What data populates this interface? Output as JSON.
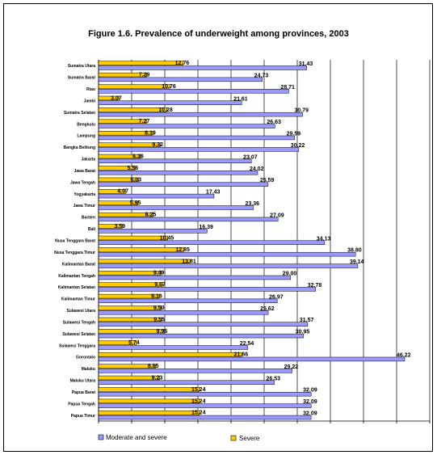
{
  "chart_data": {
    "type": "bar",
    "orientation": "horizontal",
    "title": "Figure 1.6. Prevalence of underweight among provinces, 2003",
    "categories": [
      "Sumatra Utara",
      "Sumatra Barat",
      "Riau",
      "Jambi",
      "Sumatra Selatan",
      "Bengkulu",
      "Lampung",
      "Bangka Belitung",
      "Jakarta",
      "Jawa Barat",
      "Jawa Tengah",
      "Yogyakarta",
      "Jawa Timur",
      "Banten",
      "Bali",
      "Nusa Tenggara Barat",
      "Nusa Tenggara Timur",
      "Kalimantan Barat",
      "Kalimantan Tengah",
      "Kalimantan Selatan",
      "Kalimantan Timur",
      "Sulawesi Utara",
      "Sulawesi Tengah",
      "Sulawesi Selatan",
      "Sulawesi Tenggara",
      "Gorontalo",
      "Maluku",
      "Maluku Utara",
      "Papua Barat",
      "Papua Tengah",
      "Papua Timur"
    ],
    "series": [
      {
        "name": "Moderate and severe",
        "color": "#9999ff",
        "values": [
          31.43,
          24.73,
          28.71,
          21.61,
          30.79,
          26.63,
          29.59,
          30.22,
          23.07,
          24.02,
          25.59,
          17.43,
          23.36,
          27.09,
          16.39,
          34.13,
          38.8,
          39.14,
          29.0,
          32.78,
          26.97,
          25.62,
          31.57,
          30.95,
          22.54,
          46.22,
          29.22,
          26.53,
          32.09,
          32.09,
          32.09
        ],
        "labels": [
          "31.43",
          "24.73",
          "28.71",
          "21.61",
          "30.79",
          "26.63",
          "29.59",
          "30.22",
          "23.07",
          "24.02",
          "25.59",
          "17.43",
          "23.36",
          "27.09",
          "16.39",
          "34.13",
          "38.80",
          "39.14",
          "29.00",
          "32.78",
          "26.97",
          "25.62",
          "31.57",
          "30.95",
          "22.54",
          "46.22",
          "29.22",
          "26.53",
          "32.09",
          "32.09",
          "32.09"
        ]
      },
      {
        "name": "Severe",
        "color": "#ffcc00",
        "values": [
          12.76,
          7.29,
          10.76,
          3.07,
          10.28,
          7.27,
          8.19,
          9.32,
          6.36,
          5.56,
          6.03,
          4.07,
          5.95,
          8.25,
          3.59,
          10.45,
          12.85,
          13.81,
          9.49,
          9.67,
          9.16,
          9.5,
          9.55,
          9.96,
          5.74,
          21.66,
          8.65,
          9.23,
          15.24,
          15.24,
          15.24
        ],
        "labels": [
          "12.76",
          "7.29",
          "10.76",
          "3.07",
          "10.28",
          "7.27",
          "8.19",
          "9.32",
          "6.36",
          "5.56",
          "6.03",
          "4.07",
          "5.95",
          "8.25",
          "3.59",
          "10.45",
          "12.85",
          "13.81",
          "9.49",
          "9.67",
          "9.16",
          "9.50",
          "9.55",
          "9.96",
          "5.74",
          "21.66",
          "8.65",
          "9.23",
          "15.24",
          "15.24",
          "15.24"
        ]
      }
    ],
    "xlim": [
      0,
      50
    ],
    "grid": true,
    "legend_position": "bottom"
  }
}
